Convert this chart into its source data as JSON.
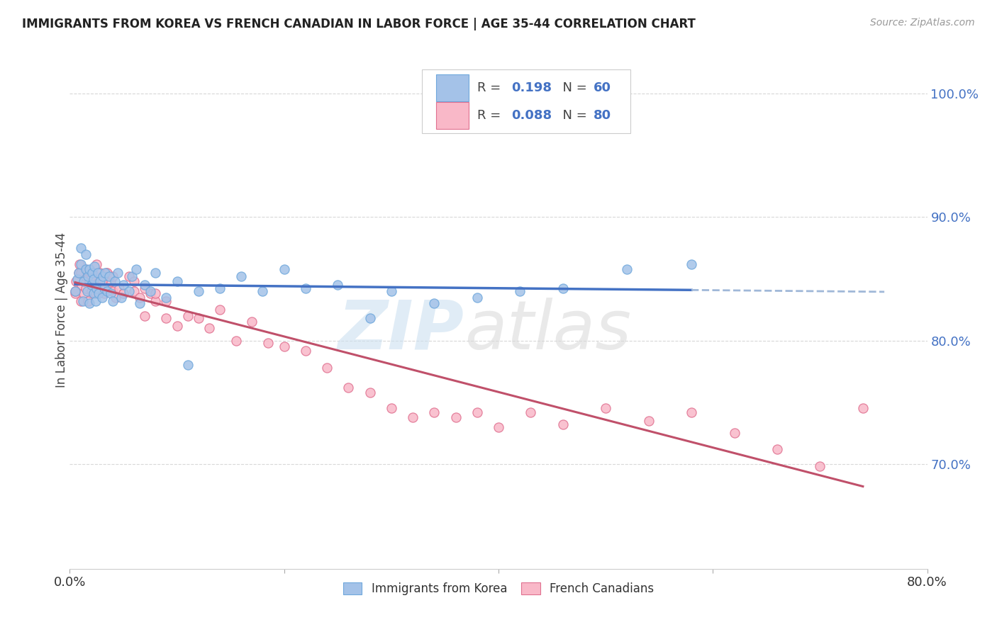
{
  "title": "IMMIGRANTS FROM KOREA VS FRENCH CANADIAN IN LABOR FORCE | AGE 35-44 CORRELATION CHART",
  "source": "Source: ZipAtlas.com",
  "ylabel": "In Labor Force | Age 35-44",
  "xlim": [
    0.0,
    0.8
  ],
  "ylim": [
    0.615,
    1.035
  ],
  "yticks": [
    0.7,
    0.8,
    0.9,
    1.0
  ],
  "yticklabels": [
    "70.0%",
    "80.0%",
    "90.0%",
    "100.0%"
  ],
  "xtick_positions": [
    0.0,
    0.2,
    0.4,
    0.6,
    0.8
  ],
  "xticklabels": [
    "0.0%",
    "",
    "",
    "",
    "80.0%"
  ],
  "korea_color": "#a4c2e8",
  "korea_edge": "#6fa8dc",
  "french_color": "#f9b8c8",
  "french_edge": "#e07090",
  "trend_korea_solid_color": "#4472c4",
  "trend_korea_dash_color": "#a0b8d8",
  "trend_french_color": "#c0506a",
  "background_color": "#ffffff",
  "grid_color": "#d8d8d8",
  "right_tick_color": "#4472c4",
  "korea_x": [
    0.005,
    0.007,
    0.008,
    0.01,
    0.01,
    0.012,
    0.013,
    0.015,
    0.015,
    0.016,
    0.017,
    0.018,
    0.018,
    0.02,
    0.021,
    0.022,
    0.022,
    0.023,
    0.024,
    0.025,
    0.026,
    0.027,
    0.028,
    0.03,
    0.031,
    0.032,
    0.033,
    0.035,
    0.037,
    0.038,
    0.04,
    0.042,
    0.045,
    0.048,
    0.05,
    0.055,
    0.058,
    0.062,
    0.065,
    0.07,
    0.075,
    0.08,
    0.09,
    0.1,
    0.11,
    0.12,
    0.14,
    0.16,
    0.18,
    0.2,
    0.22,
    0.25,
    0.28,
    0.3,
    0.34,
    0.38,
    0.42,
    0.46,
    0.52,
    0.58
  ],
  "korea_y": [
    0.84,
    0.85,
    0.855,
    0.862,
    0.875,
    0.832,
    0.848,
    0.858,
    0.87,
    0.84,
    0.852,
    0.83,
    0.858,
    0.845,
    0.855,
    0.838,
    0.85,
    0.86,
    0.832,
    0.842,
    0.855,
    0.838,
    0.848,
    0.835,
    0.852,
    0.842,
    0.855,
    0.84,
    0.852,
    0.838,
    0.832,
    0.848,
    0.855,
    0.835,
    0.845,
    0.84,
    0.852,
    0.858,
    0.83,
    0.845,
    0.84,
    0.855,
    0.835,
    0.848,
    0.78,
    0.84,
    0.842,
    0.852,
    0.84,
    0.858,
    0.842,
    0.845,
    0.818,
    0.84,
    0.83,
    0.835,
    0.84,
    0.842,
    0.858,
    0.862
  ],
  "french_x": [
    0.005,
    0.006,
    0.008,
    0.009,
    0.01,
    0.011,
    0.012,
    0.013,
    0.014,
    0.015,
    0.016,
    0.017,
    0.018,
    0.019,
    0.02,
    0.021,
    0.022,
    0.023,
    0.024,
    0.025,
    0.026,
    0.027,
    0.028,
    0.03,
    0.032,
    0.034,
    0.036,
    0.038,
    0.04,
    0.043,
    0.046,
    0.05,
    0.055,
    0.06,
    0.065,
    0.07,
    0.075,
    0.08,
    0.09,
    0.1,
    0.11,
    0.12,
    0.13,
    0.14,
    0.155,
    0.17,
    0.185,
    0.2,
    0.22,
    0.24,
    0.26,
    0.28,
    0.3,
    0.32,
    0.34,
    0.36,
    0.38,
    0.4,
    0.43,
    0.46,
    0.5,
    0.54,
    0.58,
    0.62,
    0.66,
    0.7,
    0.74,
    0.005,
    0.01,
    0.015,
    0.02,
    0.025,
    0.03,
    0.035,
    0.04,
    0.05,
    0.06,
    0.07,
    0.08,
    0.09
  ],
  "french_y": [
    0.838,
    0.848,
    0.855,
    0.862,
    0.832,
    0.845,
    0.855,
    0.838,
    0.852,
    0.842,
    0.855,
    0.832,
    0.848,
    0.855,
    0.84,
    0.852,
    0.838,
    0.85,
    0.838,
    0.845,
    0.852,
    0.84,
    0.855,
    0.842,
    0.838,
    0.855,
    0.842,
    0.848,
    0.84,
    0.835,
    0.842,
    0.838,
    0.852,
    0.84,
    0.835,
    0.82,
    0.838,
    0.832,
    0.818,
    0.812,
    0.82,
    0.818,
    0.81,
    0.825,
    0.8,
    0.815,
    0.798,
    0.795,
    0.792,
    0.778,
    0.762,
    0.758,
    0.745,
    0.738,
    0.742,
    0.738,
    0.742,
    0.73,
    0.742,
    0.732,
    0.745,
    0.735,
    0.742,
    0.725,
    0.712,
    0.698,
    0.745,
    0.84,
    0.855,
    0.858,
    0.852,
    0.862,
    0.848,
    0.855,
    0.852,
    0.838,
    0.848,
    0.842,
    0.838,
    0.832
  ]
}
